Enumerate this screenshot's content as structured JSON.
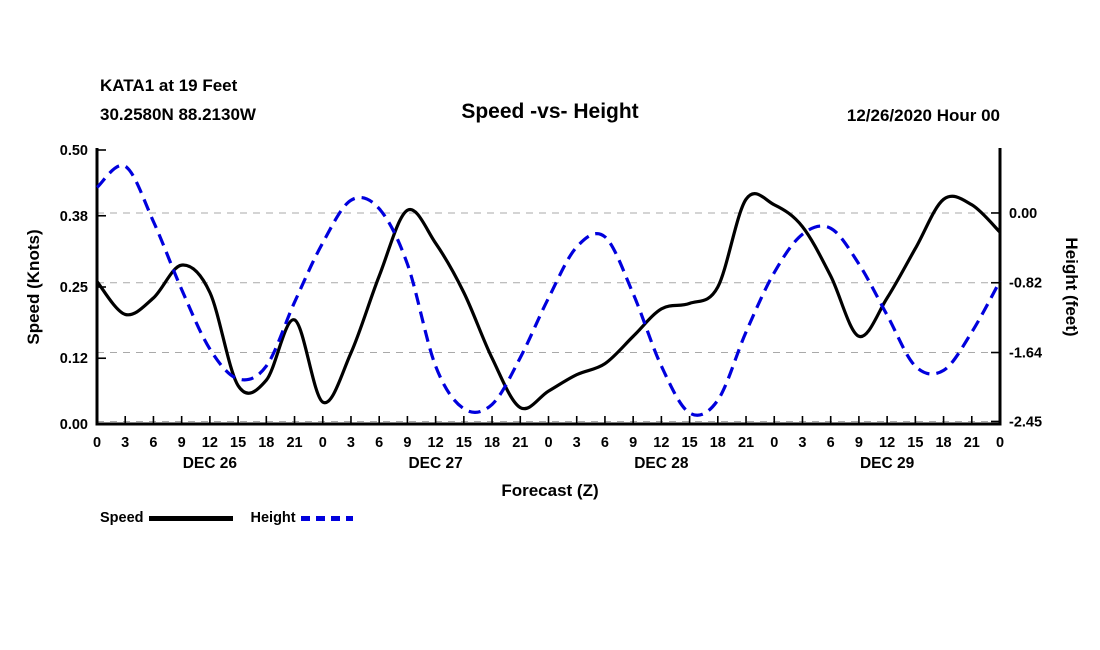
{
  "header": {
    "station_line1": "KATA1 at 19 Feet",
    "station_line2": "30.2580N 88.2130W",
    "title": "Speed -vs- Height",
    "datetime": "12/26/2020 Hour 00"
  },
  "legend": {
    "speed_label": "Speed",
    "height_label": "Height"
  },
  "colors": {
    "speed": "#000000",
    "height": "#0000dd",
    "grid": "#a9a9a9",
    "background": "#ffffff"
  },
  "chart_data": {
    "type": "line",
    "title": "Speed -vs- Height",
    "xlabel": "Forecast (Z)",
    "ylabel_left": "Speed (Knots)",
    "ylabel_right": "Height (feet)",
    "grid": "horizontal dashed lines at right-axis ticks",
    "legend_position": "bottom-left",
    "x_hours": [
      0,
      3,
      6,
      9,
      12,
      15,
      18,
      21,
      24,
      27,
      30,
      33,
      36,
      39,
      42,
      45,
      48,
      51,
      54,
      57,
      60,
      63,
      66,
      69,
      72,
      75,
      78,
      81,
      84,
      87,
      90,
      93,
      96
    ],
    "x_tick_labels": [
      "0",
      "3",
      "6",
      "9",
      "12",
      "15",
      "18",
      "21",
      "0",
      "3",
      "6",
      "9",
      "12",
      "15",
      "18",
      "21",
      "0",
      "3",
      "6",
      "9",
      "12",
      "15",
      "18",
      "21",
      "0",
      "3",
      "6",
      "9",
      "12",
      "15",
      "18",
      "21",
      "0"
    ],
    "day_labels": [
      {
        "label": "DEC 26",
        "hour": 12
      },
      {
        "label": "DEC 27",
        "hour": 36
      },
      {
        "label": "DEC 28",
        "hour": 60
      },
      {
        "label": "DEC 29",
        "hour": 84
      }
    ],
    "left_axis": {
      "range": [
        0.0,
        0.5
      ],
      "ticks": [
        0.0,
        0.12,
        0.25,
        0.38,
        0.5
      ],
      "tick_labels": [
        "0.00",
        "0.12",
        "0.25",
        "0.38",
        "0.50"
      ]
    },
    "right_axis": {
      "range": [
        -2.48,
        0.74
      ],
      "ticks": [
        0.0,
        -0.82,
        -1.64,
        -2.45
      ],
      "tick_labels": [
        "0.00",
        "-0.82",
        "-1.64",
        "-2.45"
      ]
    },
    "series": [
      {
        "name": "Speed",
        "axis": "left",
        "units": "knots",
        "color": "#000000",
        "style": "solid",
        "values": [
          0.26,
          0.2,
          0.23,
          0.29,
          0.24,
          0.07,
          0.08,
          0.19,
          0.04,
          0.13,
          0.27,
          0.39,
          0.33,
          0.24,
          0.12,
          0.03,
          0.06,
          0.09,
          0.11,
          0.16,
          0.21,
          0.22,
          0.25,
          0.41,
          0.4,
          0.36,
          0.27,
          0.16,
          0.23,
          0.32,
          0.41,
          0.4,
          0.35
        ]
      },
      {
        "name": "Height",
        "axis": "right",
        "units": "feet",
        "color": "#0000dd",
        "style": "dashed",
        "values": [
          0.3,
          0.55,
          -0.1,
          -0.9,
          -1.6,
          -1.95,
          -1.8,
          -1.05,
          -0.35,
          0.15,
          0.05,
          -0.6,
          -1.8,
          -2.3,
          -2.25,
          -1.7,
          -1.0,
          -0.4,
          -0.28,
          -0.95,
          -1.8,
          -2.35,
          -2.2,
          -1.4,
          -0.7,
          -0.25,
          -0.18,
          -0.6,
          -1.2,
          -1.8,
          -1.85,
          -1.4,
          -0.8
        ]
      }
    ]
  }
}
